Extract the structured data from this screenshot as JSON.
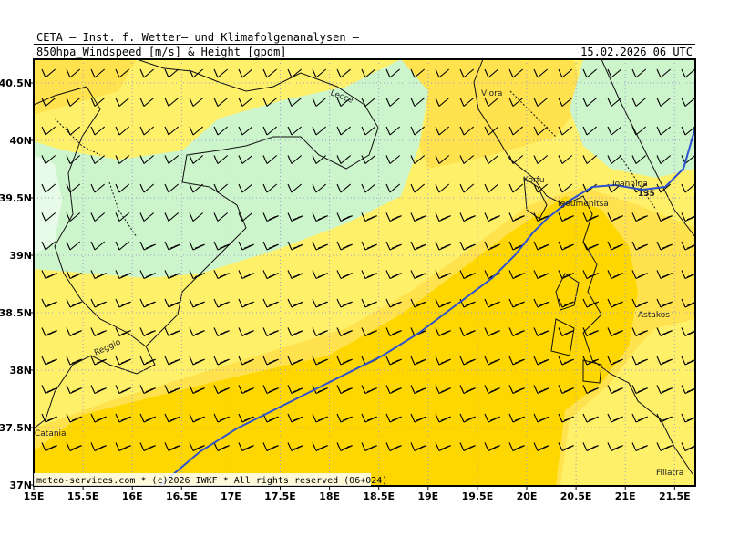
{
  "header": {
    "title_line1": "CETA – Inst. f. Wetter– und Klimafolgenanalysen –",
    "title_line2": "850hpa_Windspeed [m/s] & Height [gpdm]",
    "datetime": "15.02.2026 06 UTC"
  },
  "footer": {
    "copyright": "meteo-services.com * (c)2026 IWKF * All rights reserved (06+024)"
  },
  "axes": {
    "lon_labels": [
      "15E",
      "15.5E",
      "16E",
      "16.5E",
      "17E",
      "17.5E",
      "18E",
      "18.5E",
      "19E",
      "19.5E",
      "20E",
      "20.5E",
      "21E",
      "21.5E"
    ],
    "lat_labels": [
      "40.5N",
      "40N",
      "39.5N",
      "39N",
      "38.5N",
      "38N",
      "37.5N",
      "37N"
    ]
  },
  "places": [
    {
      "name": "Lecce"
    },
    {
      "name": "Vlora"
    },
    {
      "name": "Korfu"
    },
    {
      "name": "Ioannina"
    },
    {
      "name": "Igoumenitsa"
    },
    {
      "name": "Astakos"
    },
    {
      "name": "Reggio"
    },
    {
      "name": "Catania"
    },
    {
      "name": "Filiatra"
    }
  ],
  "contour_label": "135",
  "colors": {
    "light_green": "#ccf5cc",
    "pale_green": "#e8fbe8",
    "light_yellow": "#fff06a",
    "yellow": "#ffe24e",
    "gold": "#ffd700",
    "grid": "#9aa0c8",
    "contour": "#2c50d0"
  }
}
